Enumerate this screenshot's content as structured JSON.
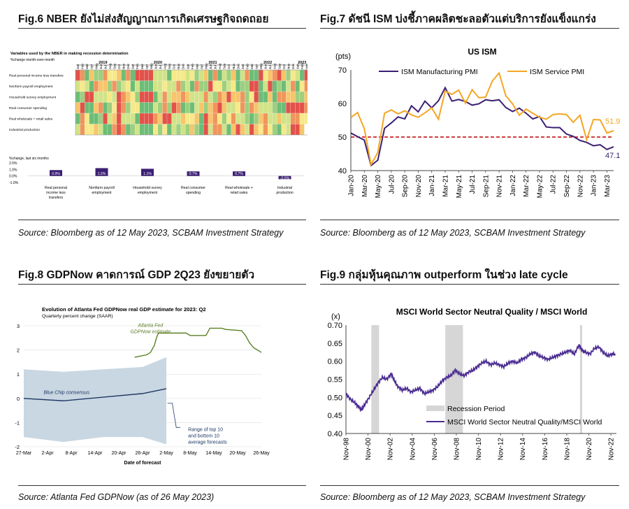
{
  "figures": {
    "fig6": {
      "title": "Fig.6 NBER ยังไม่ส่งสัญญาณการเกิดเศรษฐกิจถดถอย",
      "source": "Source: Bloomberg as of 12 May 2023, SCBAM Investment Strategy"
    },
    "fig7": {
      "title": "Fig.7 ดัชนี ISM บ่งชี้ภาคผลิตชะลอตัวแต่บริการยังแข็งแกร่ง",
      "source": "Source: Bloomberg as of 12 May 2023, SCBAM Investment Strategy"
    },
    "fig8": {
      "title": "Fig.8 GDPNow คาดการณ์ GDP 2Q23 ยังขยายตัว",
      "source": "Source: Atlanta Fed GDPNow (as of 26 May 2023)"
    },
    "fig9": {
      "title": "Fig.9 กลุ่มหุ้นคุณภาพ outperform ในช่วง late cycle",
      "source": "Source: Bloomberg as of 12 May 2023, SCBAM Investment Strategy"
    }
  },
  "chart_data": [
    {
      "id": "nber",
      "type": "heatmap",
      "title": "Variables used by the NBER in making recession determination",
      "subtitle": "%change month-over-month",
      "years": [
        "2019",
        "2020",
        "2021",
        "2022",
        "2023"
      ],
      "months": [
        "Jan",
        "Feb",
        "Mar",
        "Apr",
        "May",
        "Jun",
        "Jul",
        "Aug",
        "Sep",
        "Oct",
        "Nov",
        "Dec",
        "Jan",
        "Feb",
        "Mar",
        "Apr",
        "May",
        "Jun",
        "Jul",
        "Aug",
        "Sep",
        "Oct",
        "Nov",
        "Dec",
        "Jan",
        "Feb",
        "Mar",
        "Apr",
        "May",
        "Jun",
        "Jul",
        "Aug",
        "Sep",
        "Oct",
        "Nov",
        "Dec",
        "Jan",
        "Feb",
        "Mar",
        "Apr",
        "May",
        "Jun",
        "Jul",
        "Aug",
        "Sep",
        "Oct",
        "Nov",
        "Dec",
        "Jan",
        "Feb",
        "Mar"
      ],
      "rows": [
        "Real personal income less transfers",
        "Nonfarm payroll employment",
        "Household survey employment",
        "Real consumer spending",
        "Real wholesale + retail sales",
        "Industrial production"
      ],
      "bar_title": "%change, last six months",
      "bar_ticks": [
        "2.0%",
        "1.0%",
        "0.0%",
        "-1.0%"
      ],
      "bar_ylim": [
        -1.0,
        2.0
      ],
      "bars": [
        {
          "label": "Real personal income less transfers",
          "value": 0.9,
          "text": "0.9%"
        },
        {
          "label": "Nonfarm payroll employment",
          "value": 1.2,
          "text": "1.2%"
        },
        {
          "label": "Household survey employment",
          "value": 1.1,
          "text": "1.1%"
        },
        {
          "label": "Real consumer spending",
          "value": 0.7,
          "text": "0.7%"
        },
        {
          "label": "Real wholesale + retail sales",
          "value": 0.7,
          "text": "0.7%"
        },
        {
          "label": "Industrial production",
          "value": -0.5,
          "text": "-0.5%"
        }
      ]
    },
    {
      "id": "ism",
      "type": "line",
      "title": "US ISM",
      "ylabel": "(pts)",
      "ylim": [
        40,
        70
      ],
      "yticks": [
        40,
        50,
        60,
        70
      ],
      "reference_line": 50,
      "xticks": [
        "Jan-20",
        "Mar-20",
        "May-20",
        "Jul-20",
        "Sep-20",
        "Nov-20",
        "Jan-21",
        "Mar-21",
        "May-21",
        "Jul-21",
        "Sep-21",
        "Nov-21",
        "Jan-22",
        "Mar-22",
        "May-22",
        "Jul-22",
        "Sep-22",
        "Nov-22",
        "Jan-23",
        "Mar-23"
      ],
      "end_labels": [
        "51.9",
        "47.1"
      ],
      "series": [
        {
          "name": "ISM Manufacturing PMI",
          "color": "#3b1f73",
          "values": [
            51.2,
            50.1,
            49.1,
            41.5,
            43.1,
            52.6,
            54.2,
            56.0,
            55.4,
            59.3,
            57.5,
            60.7,
            58.7,
            60.8,
            64.7,
            60.7,
            61.2,
            60.6,
            59.5,
            59.9,
            61.1,
            60.8,
            61.1,
            58.8,
            57.6,
            58.6,
            57.1,
            55.4,
            56.1,
            53.0,
            52.8,
            52.8,
            50.9,
            50.2,
            49.0,
            48.4,
            47.4,
            47.7,
            46.3,
            47.1
          ]
        },
        {
          "name": "ISM Service PMI",
          "color": "#f5a623",
          "values": [
            55.8,
            57.3,
            52.5,
            41.8,
            45.4,
            57.1,
            58.1,
            56.9,
            57.8,
            56.6,
            55.9,
            57.2,
            58.7,
            55.3,
            63.7,
            62.7,
            64.0,
            60.1,
            64.1,
            61.7,
            61.9,
            66.7,
            69.1,
            62.3,
            59.9,
            56.5,
            58.3,
            57.1,
            55.9,
            55.3,
            56.7,
            56.9,
            56.7,
            54.4,
            56.5,
            49.2,
            55.2,
            55.1,
            51.2,
            51.9
          ]
        }
      ]
    },
    {
      "id": "gdpnow",
      "type": "line",
      "title": "Evolution of Atlanta Fed GDPNow real GDP estimate for 2023: Q2",
      "subtitle": "Quarterly percent change (SAAR)",
      "xlabel": "Date of forecast",
      "ylim": [
        -2,
        3
      ],
      "yticks": [
        3,
        2,
        1,
        0,
        -1,
        -2
      ],
      "xticks": [
        "27-Mar",
        "2-Apr",
        "8-Apr",
        "14-Apr",
        "20-Apr",
        "26-Apr",
        "2-May",
        "8-May",
        "14-May",
        "20-May",
        "26-May"
      ],
      "annotations": {
        "gdpnow": [
          "Atlanta Fed",
          "GDPNow estimate"
        ],
        "consensus": "Blue Chip consensus",
        "range": [
          "Range of top 10",
          "and bottom 10",
          "average forecasts"
        ]
      },
      "series": [
        {
          "name": "Atlanta Fed GDPNow estimate",
          "color": "#5b7f24",
          "x": [
            28,
            31,
            32,
            33,
            33.5,
            34,
            35,
            37,
            40,
            41,
            42,
            46,
            47,
            50,
            51,
            55,
            56,
            57,
            58,
            60
          ],
          "values": [
            1.7,
            1.8,
            1.9,
            2.2,
            2.5,
            2.7,
            2.7,
            2.7,
            2.7,
            2.7,
            2.6,
            2.6,
            2.9,
            2.9,
            2.85,
            2.8,
            2.6,
            2.3,
            2.1,
            1.9
          ]
        },
        {
          "name": "Blue Chip consensus",
          "color": "#1f3864",
          "x": [
            0,
            10,
            20,
            30,
            36
          ],
          "values": [
            0.0,
            -0.1,
            0.05,
            0.2,
            0.4
          ]
        },
        {
          "name": "Consensus range top 10",
          "x": [
            0,
            10,
            20,
            30,
            36
          ],
          "values": [
            1.2,
            1.1,
            1.2,
            1.3,
            1.7
          ]
        },
        {
          "name": "Consensus range bottom 10",
          "x": [
            0,
            10,
            20,
            30,
            36
          ],
          "values": [
            -1.6,
            -1.8,
            -1.6,
            -1.6,
            -1.9
          ]
        }
      ]
    },
    {
      "id": "quality",
      "type": "line",
      "title": "MSCI World Sector Neutral Quality / MSCI World",
      "ylabel": "(x)",
      "ylim": [
        0.4,
        0.7
      ],
      "yticks": [
        0.4,
        0.45,
        0.5,
        0.55,
        0.6,
        0.65,
        0.7
      ],
      "xticks": [
        "Nov-98",
        "Nov-00",
        "Nov-02",
        "Nov-04",
        "Nov-06",
        "Nov-08",
        "Nov-10",
        "Nov-12",
        "Nov-14",
        "Nov-16",
        "Nov-18",
        "Nov-20",
        "Nov-22"
      ],
      "recession_periods": [
        [
          2001.2,
          2001.9
        ],
        [
          2007.9,
          2009.5
        ],
        [
          2020.1,
          2020.3
        ]
      ],
      "legend": [
        "Recession Period",
        "MSCI World Sector Neutral Quality/MSCI World"
      ],
      "series": [
        {
          "name": "MSCI World Sector Neutral Quality/MSCI World",
          "color": "#4b2c91",
          "x": [
            1998.9,
            1999.3,
            1999.7,
            2000.0,
            2000.3,
            2000.6,
            2001.0,
            2001.4,
            2001.8,
            2002.2,
            2002.6,
            2003.0,
            2003.3,
            2003.6,
            2004.0,
            2004.4,
            2004.8,
            2005.2,
            2005.6,
            2006.0,
            2006.4,
            2006.8,
            2007.2,
            2007.6,
            2008.0,
            2008.4,
            2008.8,
            2009.2,
            2009.6,
            2010.0,
            2010.4,
            2010.8,
            2011.2,
            2011.6,
            2012.0,
            2012.4,
            2012.8,
            2013.2,
            2013.6,
            2014.0,
            2014.4,
            2014.8,
            2015.2,
            2015.6,
            2016.0,
            2016.4,
            2016.8,
            2017.2,
            2017.6,
            2018.0,
            2018.4,
            2018.8,
            2019.2,
            2019.6,
            2020.0,
            2020.3,
            2020.6,
            2021.0,
            2021.4,
            2021.8,
            2022.2,
            2022.6,
            2023.0,
            2023.3
          ],
          "values": [
            0.51,
            0.495,
            0.485,
            0.475,
            0.465,
            0.48,
            0.5,
            0.52,
            0.54,
            0.555,
            0.55,
            0.565,
            0.545,
            0.53,
            0.52,
            0.525,
            0.515,
            0.52,
            0.525,
            0.51,
            0.515,
            0.52,
            0.53,
            0.545,
            0.555,
            0.56,
            0.575,
            0.565,
            0.56,
            0.57,
            0.575,
            0.585,
            0.595,
            0.6,
            0.59,
            0.595,
            0.59,
            0.585,
            0.595,
            0.6,
            0.595,
            0.605,
            0.61,
            0.62,
            0.625,
            0.615,
            0.61,
            0.605,
            0.61,
            0.615,
            0.62,
            0.625,
            0.63,
            0.62,
            0.645,
            0.63,
            0.625,
            0.62,
            0.635,
            0.64,
            0.625,
            0.615,
            0.62,
            0.62
          ]
        }
      ]
    }
  ]
}
